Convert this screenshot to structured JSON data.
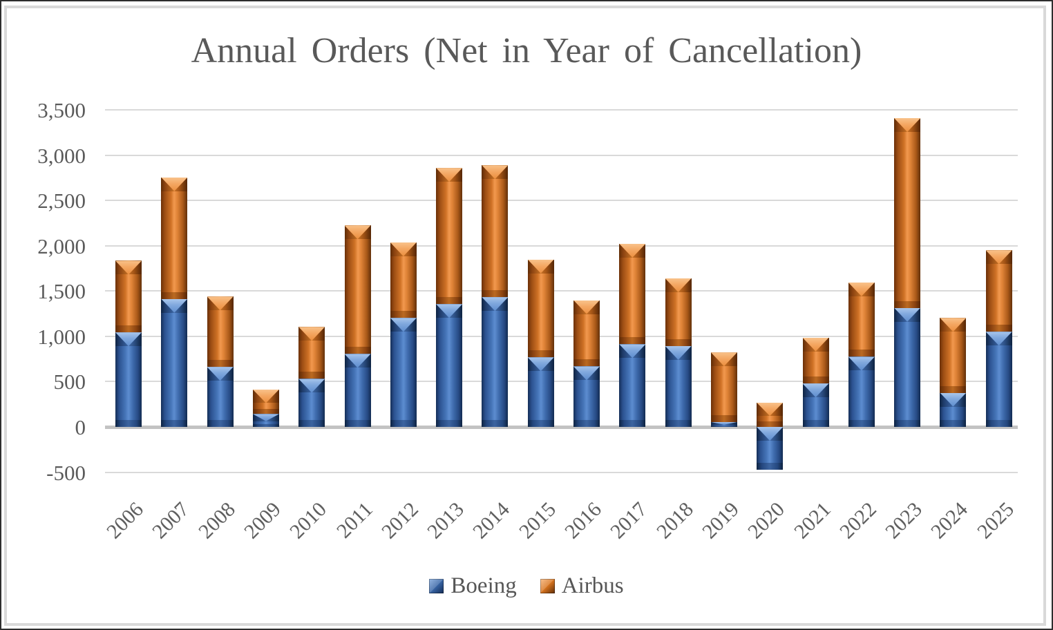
{
  "title": "Annual Orders (Net in Year of Cancellation)",
  "legend": {
    "items": [
      {
        "label": "Boeing",
        "color": "#3a67a8"
      },
      {
        "label": "Airbus",
        "color": "#e8833a"
      }
    ],
    "position": "bottom"
  },
  "y_axis": {
    "tick_labels": [
      "3,500",
      "3,000",
      "2,500",
      "2,000",
      "1,500",
      "1,000",
      "500",
      "0",
      "-500"
    ],
    "tick_values": [
      3500,
      3000,
      2500,
      2000,
      1500,
      1000,
      500,
      0,
      -500
    ]
  },
  "chart_data": {
    "type": "bar",
    "stacked": true,
    "title": "Annual Orders (Net in Year of Cancellation)",
    "categories": [
      "2006",
      "2007",
      "2008",
      "2009",
      "2010",
      "2011",
      "2012",
      "2013",
      "2014",
      "2015",
      "2016",
      "2017",
      "2018",
      "2019",
      "2020",
      "2021",
      "2022",
      "2023",
      "2024",
      "2025"
    ],
    "series": [
      {
        "name": "Boeing",
        "color": "#3a67a8",
        "values": [
          1044,
          1413,
          662,
          142,
          530,
          805,
          1203,
          1355,
          1432,
          768,
          668,
          912,
          893,
          54,
          -471,
          479,
          774,
          1314,
          377,
          1050
        ]
      },
      {
        "name": "Airbus",
        "color": "#e8833a",
        "values": [
          790,
          1341,
          777,
          271,
          574,
          1419,
          833,
          1503,
          1456,
          1080,
          731,
          1109,
          747,
          768,
          268,
          507,
          820,
          2094,
          826,
          900
        ]
      }
    ],
    "xlabel": "",
    "ylabel": "",
    "ylim": [
      -500,
      3500
    ],
    "ytick_step": 500,
    "grid": true,
    "legend_position": "bottom"
  }
}
